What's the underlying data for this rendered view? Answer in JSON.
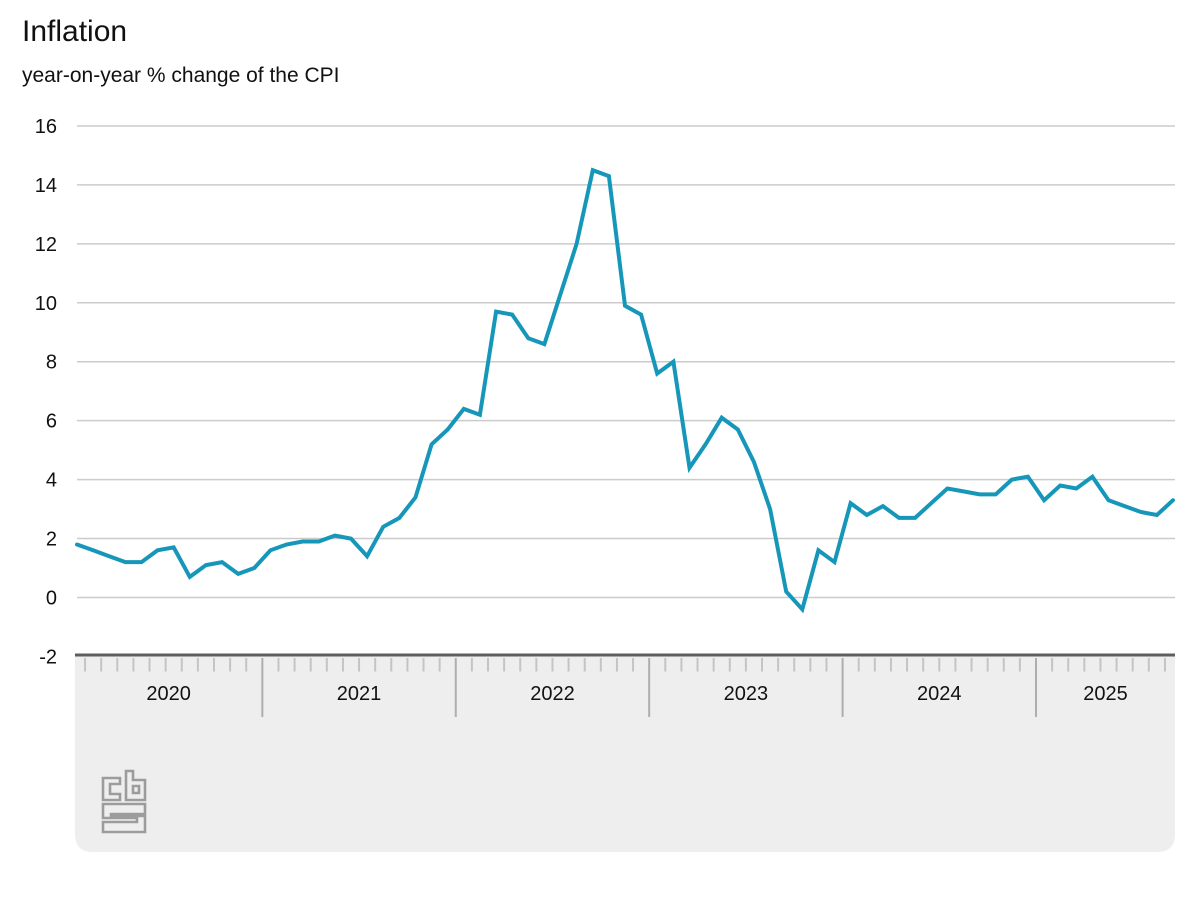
{
  "header": {
    "title": "Inflation",
    "subtitle": "year-on-year % change of the CPI"
  },
  "chart_data": {
    "type": "line",
    "title": "Inflation",
    "subtitle": "year-on-year % change of the CPI",
    "unit": "% (year-on-year change of CPI)",
    "ylim": [
      -2,
      16
    ],
    "grid": true,
    "legend": "none",
    "line_color": "#1697ba",
    "y_tick_labels": [
      "16",
      "14",
      "12",
      "10",
      "8",
      "6",
      "4",
      "2",
      "0",
      "-2"
    ],
    "y_ticks": [
      16,
      14,
      12,
      10,
      8,
      6,
      4,
      2,
      0,
      -2
    ],
    "year_labels": [
      "2020",
      "2021",
      "2022",
      "2023",
      "2024",
      "2025"
    ],
    "x": [
      "2020-01",
      "2020-02",
      "2020-03",
      "2020-04",
      "2020-05",
      "2020-06",
      "2020-07",
      "2020-08",
      "2020-09",
      "2020-10",
      "2020-11",
      "2020-12",
      "2021-01",
      "2021-02",
      "2021-03",
      "2021-04",
      "2021-05",
      "2021-06",
      "2021-07",
      "2021-08",
      "2021-09",
      "2021-10",
      "2021-11",
      "2021-12",
      "2022-01",
      "2022-02",
      "2022-03",
      "2022-04",
      "2022-05",
      "2022-06",
      "2022-07",
      "2022-08",
      "2022-09",
      "2022-10",
      "2022-11",
      "2022-12",
      "2023-01",
      "2023-02",
      "2023-03",
      "2023-04",
      "2023-05",
      "2023-06",
      "2023-07",
      "2023-08",
      "2023-09",
      "2023-10",
      "2023-11",
      "2023-12",
      "2024-01",
      "2024-02",
      "2024-03",
      "2024-04",
      "2024-05",
      "2024-06",
      "2024-07",
      "2024-08",
      "2024-09",
      "2024-10",
      "2024-11",
      "2024-12",
      "2025-01",
      "2025-02",
      "2025-03",
      "2025-04",
      "2025-05",
      "2025-06",
      "2025-07",
      "2025-08",
      "2025-09"
    ],
    "values": [
      1.8,
      1.6,
      1.4,
      1.2,
      1.2,
      1.6,
      1.7,
      0.7,
      1.1,
      1.2,
      0.8,
      1.0,
      1.6,
      1.8,
      1.9,
      1.9,
      2.1,
      2.0,
      1.4,
      2.4,
      2.7,
      3.4,
      5.2,
      5.7,
      6.4,
      6.2,
      9.7,
      9.6,
      8.8,
      8.6,
      10.3,
      12.0,
      14.5,
      14.3,
      9.9,
      9.6,
      7.6,
      8.0,
      4.4,
      5.2,
      6.1,
      5.7,
      4.6,
      3.0,
      0.2,
      -0.4,
      1.6,
      1.2,
      3.2,
      2.8,
      3.1,
      2.7,
      2.7,
      3.2,
      3.7,
      3.6,
      3.5,
      3.5,
      4.0,
      4.1,
      3.3,
      3.8,
      3.7,
      4.1,
      3.3,
      3.1,
      2.9,
      2.8,
      3.3
    ]
  },
  "colors": {
    "line": "#1697ba",
    "gridline": "#cbcbcb",
    "axis_band_fill": "#eeeeee",
    "axis_band_border": "#5e5e5e",
    "tick": "#c4c4c4",
    "year_separator": "#aeaeae",
    "logo": "#9c9c9c",
    "text": "#111111"
  },
  "footer": {
    "logo_name": "cbs-logo"
  }
}
